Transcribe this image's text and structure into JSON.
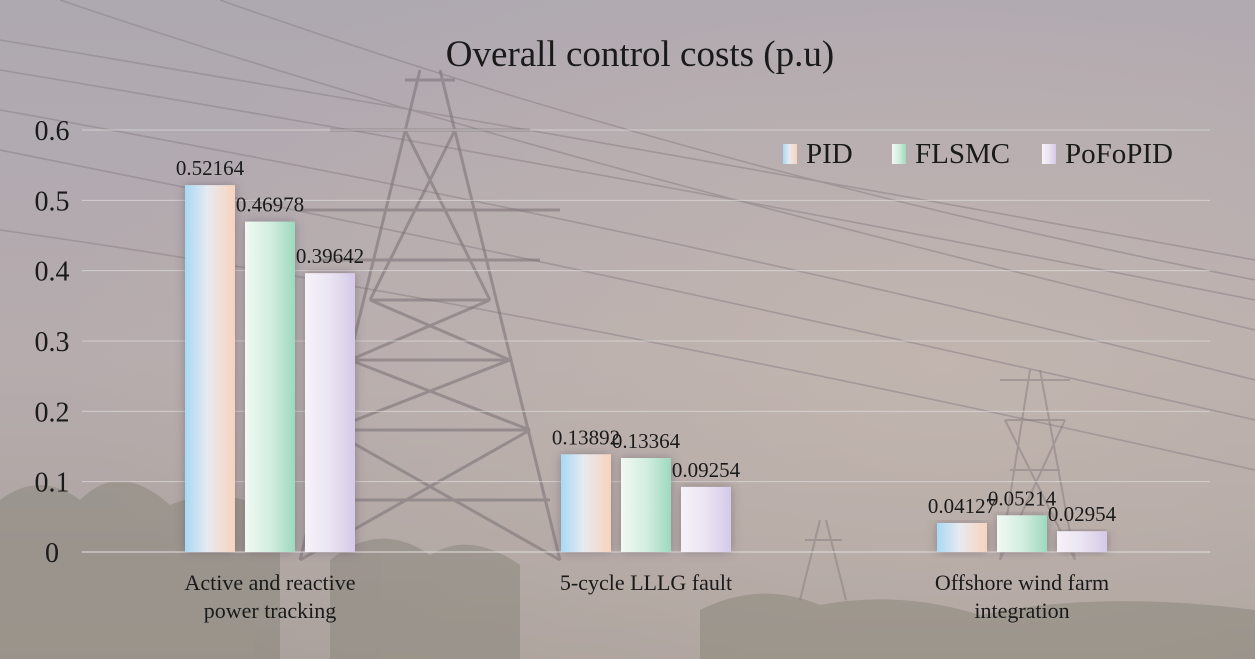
{
  "chart_data": {
    "type": "bar",
    "title": "Overall control costs (p.u)",
    "xlabel": "",
    "ylabel": "",
    "ylim": [
      0,
      0.6
    ],
    "yticks": [
      "0",
      "0.1",
      "0.2",
      "0.3",
      "0.4",
      "0.5",
      "0.6"
    ],
    "grid": true,
    "legend_position": "top-right",
    "categories": [
      [
        "Active and reactive",
        "power tracking"
      ],
      [
        "5-cycle LLLG fault"
      ],
      [
        "Offshore wind farm",
        "integration"
      ]
    ],
    "series": [
      {
        "name": "PID",
        "values": [
          0.52164,
          0.13892,
          0.04127
        ],
        "labels": [
          "0.52164",
          "0.13892",
          "0.04127"
        ]
      },
      {
        "name": "FLSMC",
        "values": [
          0.46978,
          0.13364,
          0.05214
        ],
        "labels": [
          "0.46978",
          "0.13364",
          "0.05214"
        ]
      },
      {
        "name": "PoFoPID",
        "values": [
          0.39642,
          0.09254,
          0.02954
        ],
        "labels": [
          "0.39642",
          "0.09254",
          "0.02954"
        ]
      }
    ]
  },
  "colors": {
    "pid_left": "#aedcf5",
    "pid_right": "#f8d6c0",
    "flsmc_left": "#eaf6ee",
    "flsmc_right": "#a4dcc3",
    "pofopid_left": "#f3eef7",
    "pofopid_right": "#d8cde9",
    "text": "#1a1a1a",
    "grid": "#dcdad9"
  }
}
